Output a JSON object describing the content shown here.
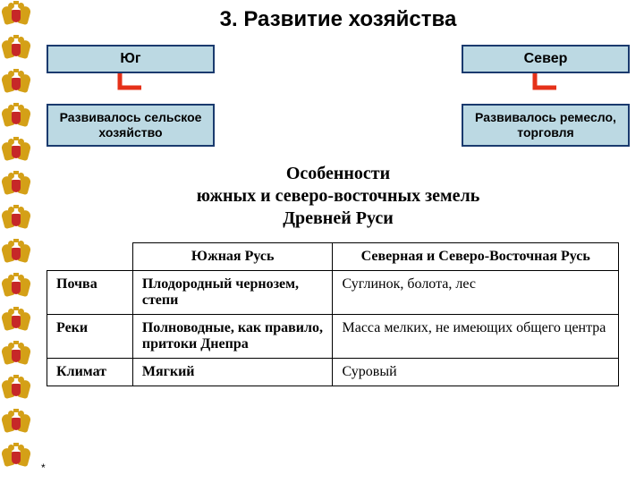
{
  "title": "3. Развитие хозяйства",
  "boxes": {
    "south_header": "Юг",
    "north_header": "Север",
    "south_desc": "Развивалось сельское хозяйство",
    "north_desc": "Развивалось ремесло, торговля",
    "header_bg": "#bcd9e3",
    "header_border": "#1a3a6e",
    "desc_bg": "#bcd9e3",
    "desc_border": "#1a3a6e",
    "connector_color": "#e53119"
  },
  "tableTitle": {
    "line1": "Особенности",
    "line2": "южных и северо-восточных земель",
    "line3": "Древней Руси"
  },
  "table": {
    "columns": [
      "",
      "Южная Русь",
      "Северная и Северо-Восточная Русь"
    ],
    "rows": [
      {
        "label": "Почва",
        "south": "Плодородный чернозем, степи",
        "north": "Суглинок, болота, лес"
      },
      {
        "label": "Реки",
        "south": "Полноводные, как правило, притоки Днепра",
        "north": "Масса мелких, не имеющих общего центра"
      },
      {
        "label": "Климат",
        "south": "Мягкий",
        "north": "Суровый"
      }
    ],
    "border_color": "#000000",
    "font": "Times New Roman"
  },
  "eagleCount": 14,
  "asterisk": "*"
}
